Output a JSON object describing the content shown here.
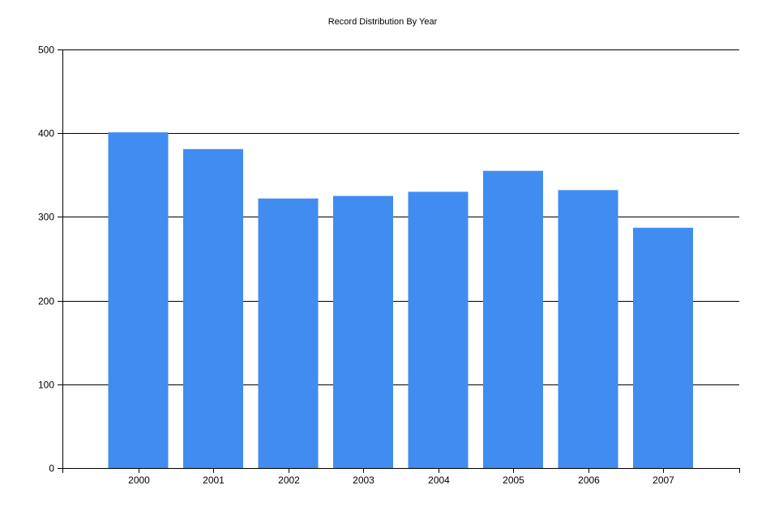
{
  "chart_data": {
    "type": "bar",
    "title": "Record Distribution By Year",
    "xlabel": "",
    "ylabel": "",
    "categories": [
      "2000",
      "2001",
      "2002",
      "2003",
      "2004",
      "2005",
      "2006",
      "2007"
    ],
    "values": [
      401,
      381,
      322,
      325,
      330,
      355,
      332,
      287
    ],
    "ylim": [
      0,
      500
    ],
    "yticks": [
      0,
      100,
      200,
      300,
      400,
      500
    ],
    "grid": true,
    "legend": "none",
    "bar_color": "#418CF0"
  }
}
